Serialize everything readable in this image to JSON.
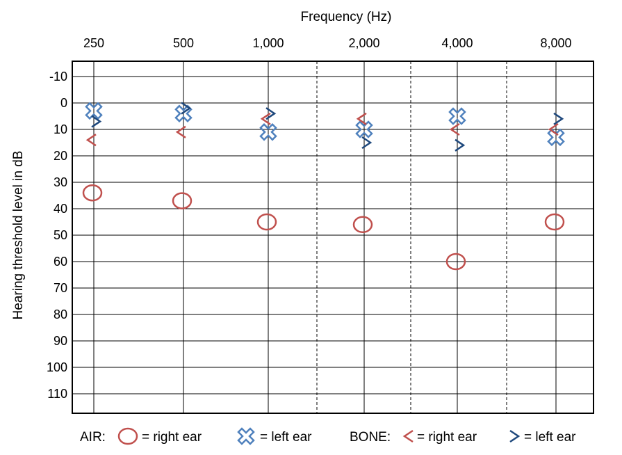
{
  "chart_data": {
    "type": "scatter",
    "title": "",
    "xlabel": "Frequency (Hz)",
    "ylabel": "Hearing threshold level in dB",
    "x_tick_labels": [
      "250",
      "500",
      "1,000",
      "2,000",
      "4,000",
      "8,000"
    ],
    "x_values": [
      250,
      500,
      1000,
      2000,
      4000,
      8000
    ],
    "y_ticks": [
      -10,
      0,
      10,
      20,
      30,
      40,
      50,
      60,
      70,
      80,
      90,
      100,
      110
    ],
    "y_tick_labels": [
      "-10",
      "0",
      "10",
      "20",
      "30",
      "40",
      "50",
      "60",
      "70",
      "80",
      "90",
      "100",
      "110"
    ],
    "ylim": [
      -15,
      115
    ],
    "y_inverted": true,
    "x_scale": "log",
    "grid": true,
    "series": [
      {
        "key": "air_right",
        "symbol": "circle",
        "color": "#C0504D",
        "points": [
          {
            "x": 250,
            "y": 34
          },
          {
            "x": 500,
            "y": 37
          },
          {
            "x": 1000,
            "y": 45
          },
          {
            "x": 2000,
            "y": 46
          },
          {
            "x": 4000,
            "y": 60
          },
          {
            "x": 8000,
            "y": 45
          }
        ]
      },
      {
        "key": "air_left",
        "symbol": "cross",
        "color": "#4F81BD",
        "points": [
          {
            "x": 250,
            "y": 3
          },
          {
            "x": 500,
            "y": 4
          },
          {
            "x": 1000,
            "y": 11
          },
          {
            "x": 2000,
            "y": 10
          },
          {
            "x": 4000,
            "y": 5
          },
          {
            "x": 8000,
            "y": 13
          }
        ]
      },
      {
        "key": "bone_right",
        "symbol": "lt",
        "color": "#C0504D",
        "points": [
          {
            "x": 250,
            "y": 14
          },
          {
            "x": 500,
            "y": 11
          },
          {
            "x": 1000,
            "y": 6
          },
          {
            "x": 2000,
            "y": 6
          },
          {
            "x": 4000,
            "y": 10
          },
          {
            "x": 8000,
            "y": 10
          }
        ]
      },
      {
        "key": "bone_left",
        "symbol": "gt",
        "color": "#1F497D",
        "points": [
          {
            "x": 250,
            "y": 7
          },
          {
            "x": 500,
            "y": 2
          },
          {
            "x": 1000,
            "y": 4
          },
          {
            "x": 2000,
            "y": 15
          },
          {
            "x": 4000,
            "y": 16
          },
          {
            "x": 8000,
            "y": 6
          }
        ]
      }
    ],
    "legend": {
      "placement": "bottom",
      "air_label": "AIR:",
      "bone_label": "BONE:",
      "items": [
        {
          "series": "air_right",
          "text": "= right ear"
        },
        {
          "series": "air_left",
          "text": "= left ear"
        },
        {
          "series": "bone_right",
          "text": "= right ear"
        },
        {
          "series": "bone_left",
          "text": "= left ear"
        }
      ]
    }
  }
}
